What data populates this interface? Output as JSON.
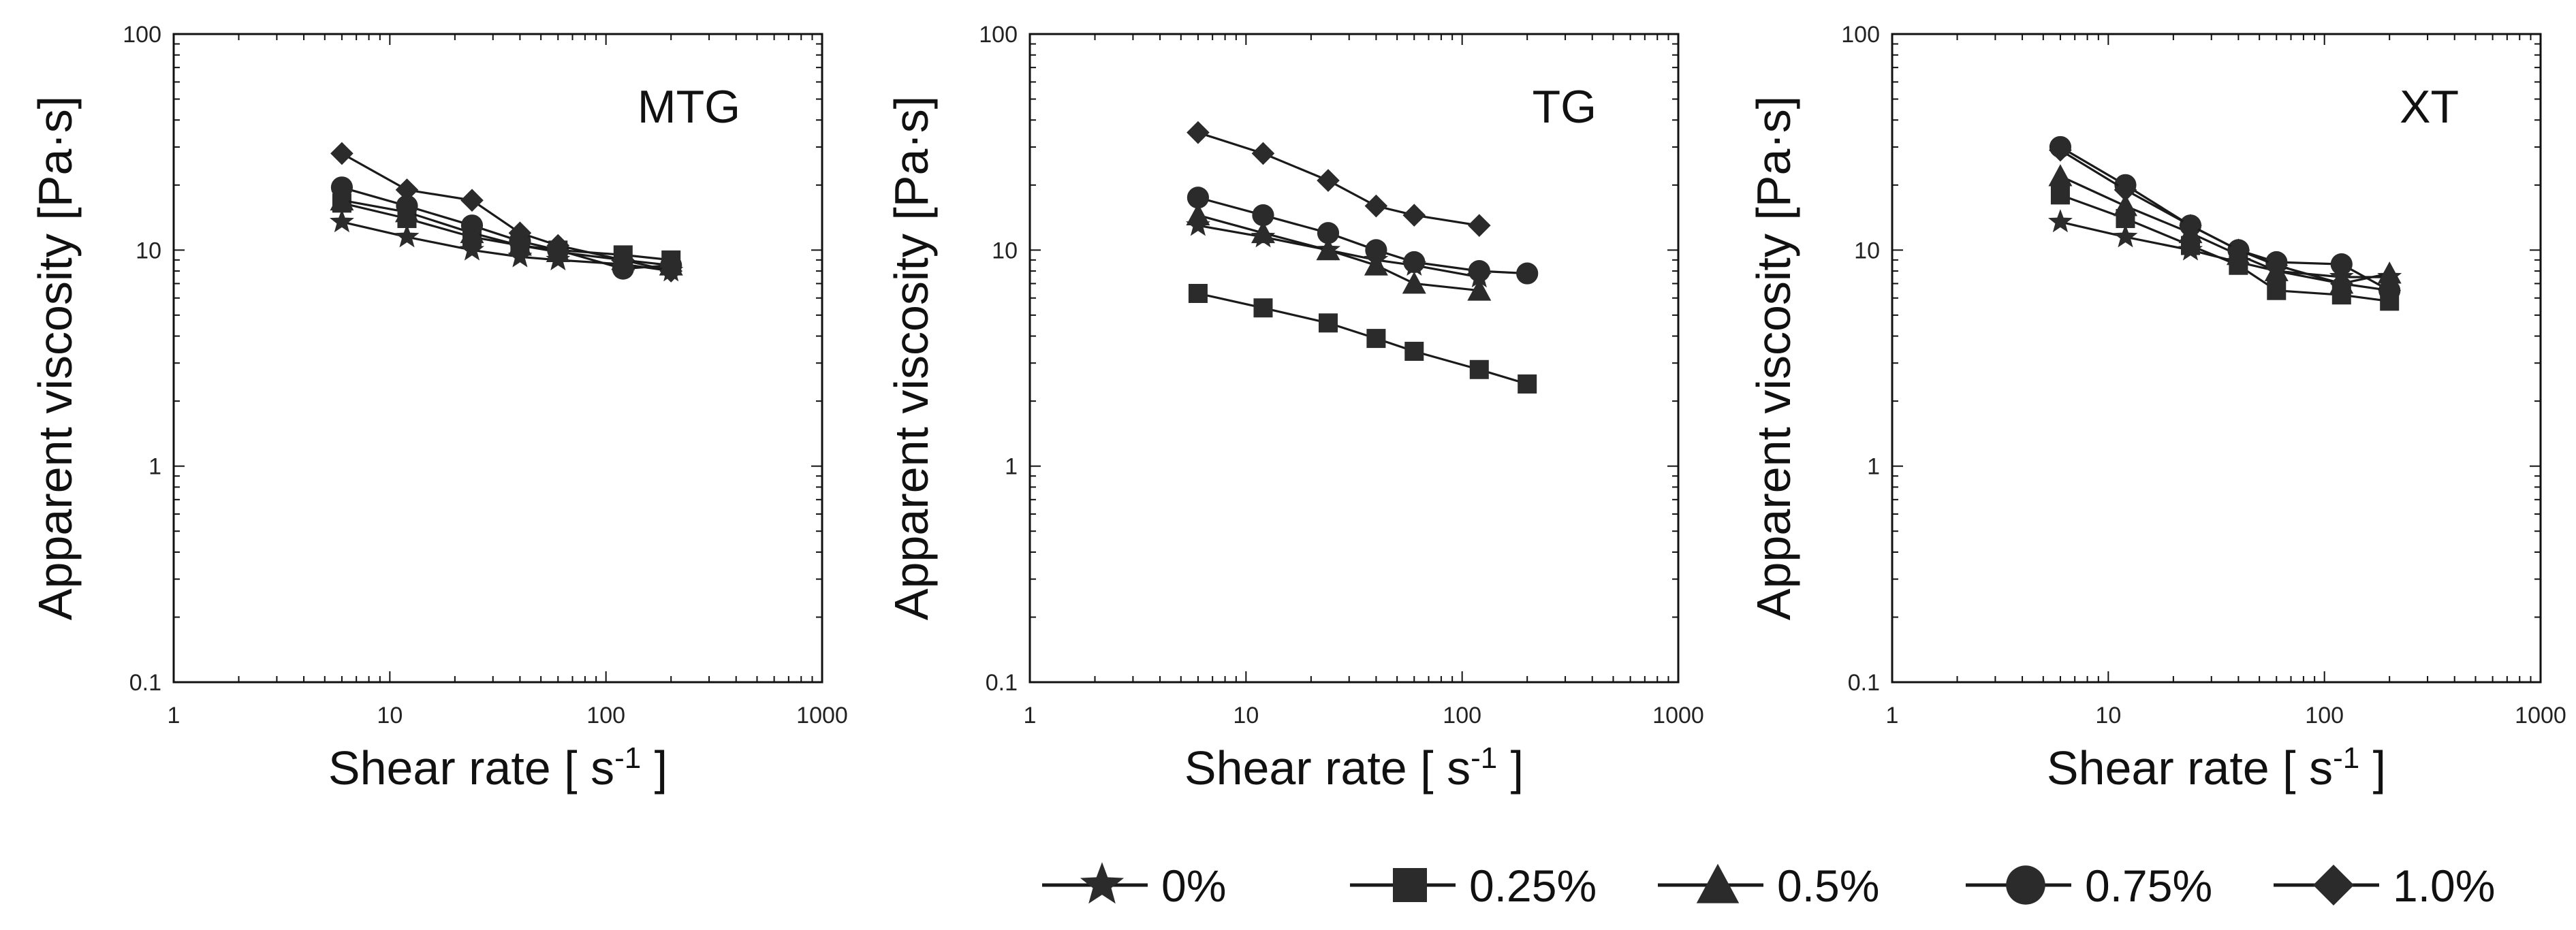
{
  "chart_data": [
    {
      "type": "line",
      "title": "MTG",
      "xlabel": "Shear rate [ s",
      "xlabel_sup": "-1",
      "xlabel_suffix": " ]",
      "ylabel": "Apparent viscosity [Pa·s]",
      "xscale": "log",
      "yscale": "log",
      "xlim": [
        1,
        1000
      ],
      "ylim": [
        0.1,
        100
      ],
      "xticks": [
        "1",
        "10",
        "100",
        "1000"
      ],
      "yticks": [
        "0.1",
        "1",
        "10",
        "100"
      ],
      "series": [
        {
          "name": "0%",
          "marker": "star",
          "x": [
            6,
            12,
            24,
            40,
            60,
            120,
            200
          ],
          "y": [
            13.5,
            11.5,
            10,
            9.3,
            9,
            8.6,
            8
          ]
        },
        {
          "name": "0.25%",
          "marker": "square",
          "x": [
            6,
            12,
            24,
            40,
            60,
            120,
            200
          ],
          "y": [
            16.5,
            14,
            11.5,
            10.5,
            10,
            9.5,
            9
          ]
        },
        {
          "name": "0.5%",
          "marker": "triangle",
          "x": [
            6,
            12,
            24,
            40,
            60,
            120,
            200
          ],
          "y": [
            17,
            15,
            12,
            10.5,
            9.8,
            9,
            8.5
          ]
        },
        {
          "name": "0.75%",
          "marker": "circle",
          "x": [
            6,
            12,
            24,
            40,
            60,
            120,
            200
          ],
          "y": [
            19.5,
            16,
            13,
            11,
            10,
            8.2,
            8.5
          ]
        },
        {
          "name": "1.0%",
          "marker": "diamond",
          "x": [
            6,
            12,
            24,
            40,
            60,
            120,
            200
          ],
          "y": [
            28,
            19,
            17,
            12,
            10.5,
            9,
            8
          ]
        }
      ]
    },
    {
      "type": "line",
      "title": "TG",
      "xlabel": "Shear rate [ s",
      "xlabel_sup": "-1",
      "xlabel_suffix": " ]",
      "ylabel": "Apparent viscosity [Pa·s]",
      "xscale": "log",
      "yscale": "log",
      "xlim": [
        1,
        1000
      ],
      "ylim": [
        0.1,
        100
      ],
      "xticks": [
        "1",
        "10",
        "100",
        "1000"
      ],
      "yticks": [
        "0.1",
        "1",
        "10",
        "100"
      ],
      "series": [
        {
          "name": "0%",
          "marker": "star",
          "x": [
            6,
            12,
            24,
            40,
            60,
            120
          ],
          "y": [
            13,
            11.5,
            10,
            9,
            8.5,
            7.5
          ]
        },
        {
          "name": "0.25%",
          "marker": "square",
          "x": [
            6,
            12,
            24,
            40,
            60,
            120,
            200
          ],
          "y": [
            6.3,
            5.4,
            4.6,
            3.9,
            3.4,
            2.8,
            2.4
          ]
        },
        {
          "name": "0.5%",
          "marker": "triangle",
          "x": [
            6,
            12,
            24,
            40,
            60,
            120
          ],
          "y": [
            14.5,
            12,
            10,
            8.5,
            7,
            6.5
          ]
        },
        {
          "name": "0.75%",
          "marker": "circle",
          "x": [
            6,
            12,
            24,
            40,
            60,
            120,
            200
          ],
          "y": [
            17.5,
            14.5,
            12,
            10,
            8.8,
            8,
            7.8
          ]
        },
        {
          "name": "1.0%",
          "marker": "diamond",
          "x": [
            6,
            12,
            24,
            40,
            60,
            120
          ],
          "y": [
            35,
            28,
            21,
            16,
            14.5,
            13
          ]
        }
      ]
    },
    {
      "type": "line",
      "title": "XT",
      "xlabel": "Shear rate [ s",
      "xlabel_sup": "-1",
      "xlabel_suffix": " ]",
      "ylabel": "Apparent viscosity [Pa·s]",
      "xscale": "log",
      "yscale": "log",
      "xlim": [
        1,
        1000
      ],
      "ylim": [
        0.1,
        100
      ],
      "xticks": [
        "1",
        "10",
        "100",
        "1000"
      ],
      "yticks": [
        "0.1",
        "1",
        "10",
        "100"
      ],
      "series": [
        {
          "name": "0%",
          "marker": "star",
          "x": [
            6,
            12,
            24,
            40,
            60,
            120,
            200
          ],
          "y": [
            13.5,
            11.5,
            10,
            8.8,
            8,
            7.5,
            7.5
          ]
        },
        {
          "name": "0.25%",
          "marker": "square",
          "x": [
            6,
            12,
            24,
            40,
            60,
            120,
            200
          ],
          "y": [
            18,
            14,
            10.5,
            8.5,
            6.5,
            6.2,
            5.8
          ]
        },
        {
          "name": "0.5%",
          "marker": "triangle",
          "x": [
            6,
            12,
            24,
            40,
            60,
            120,
            200
          ],
          "y": [
            22,
            16,
            12,
            9.5,
            8,
            7,
            7.8
          ]
        },
        {
          "name": "0.75%",
          "marker": "circle",
          "x": [
            6,
            12,
            24,
            40,
            60,
            120,
            200
          ],
          "y": [
            30,
            20,
            13,
            10,
            8.8,
            8.6,
            6.5
          ]
        },
        {
          "name": "1.0%",
          "marker": "diamond",
          "x": [
            6,
            12,
            24,
            40,
            60,
            120,
            200
          ],
          "y": [
            29,
            19,
            13,
            10,
            8.5,
            7,
            6.5
          ]
        }
      ]
    }
  ],
  "legend": [
    {
      "label": "0%",
      "marker": "star"
    },
    {
      "label": "0.25%",
      "marker": "square"
    },
    {
      "label": "0.5%",
      "marker": "triangle"
    },
    {
      "label": "0.75%",
      "marker": "circle"
    },
    {
      "label": "1.0%",
      "marker": "diamond"
    }
  ],
  "colors": {
    "axis": "#111111",
    "line": "#1a1a1a",
    "marker": "#2b2b2b"
  }
}
